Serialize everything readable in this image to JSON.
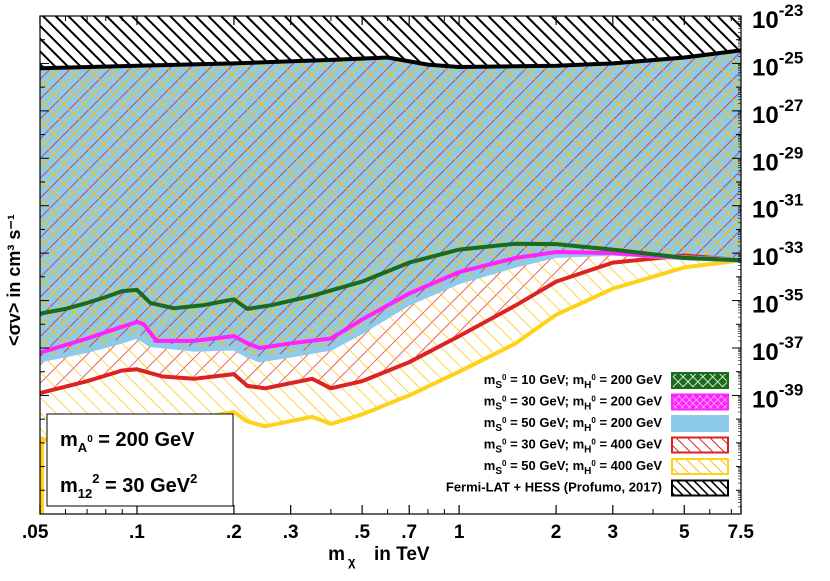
{
  "colors": {
    "green": "#1a6b1a",
    "magenta": "#ff22ff",
    "lightblue": "#8ecbea",
    "red": "#dd2222",
    "yellow": "#ffd21a",
    "black": "#000000"
  },
  "chart_data": {
    "type": "area",
    "xlabel_main": "m",
    "xlabel_sub": "χ",
    "xlabel_suffix": "in TeV",
    "ylabel": "<σv> in cm³ s⁻¹",
    "x_scale": "log",
    "y_scale": "log",
    "xlim": [
      0.05,
      7.5
    ],
    "ylim": [
      1e-44,
      1e-23
    ],
    "x_ticks": [
      {
        "v": 0.05,
        "label": ".05"
      },
      {
        "v": 0.1,
        "label": ".1"
      },
      {
        "v": 0.2,
        "label": ".2"
      },
      {
        "v": 0.3,
        "label": ".3"
      },
      {
        "v": 0.5,
        "label": ".5"
      },
      {
        "v": 0.7,
        "label": ".7"
      },
      {
        "v": 1,
        "label": "1"
      },
      {
        "v": 2,
        "label": "2"
      },
      {
        "v": 3,
        "label": "3"
      },
      {
        "v": 5,
        "label": "5"
      },
      {
        "v": 7.5,
        "label": "7.5"
      }
    ],
    "y_ticks": [
      {
        "v": -23,
        "base": "10",
        "exp": "-23"
      },
      {
        "v": -25,
        "base": "10",
        "exp": "-25"
      },
      {
        "v": -27,
        "base": "10",
        "exp": "-27"
      },
      {
        "v": -29,
        "base": "10",
        "exp": "-29"
      },
      {
        "v": -31,
        "base": "10",
        "exp": "-31"
      },
      {
        "v": -33,
        "base": "10",
        "exp": "-33"
      },
      {
        "v": -35,
        "base": "10",
        "exp": "-35"
      },
      {
        "v": -37,
        "base": "10",
        "exp": "-37"
      },
      {
        "v": -39,
        "base": "10",
        "exp": "-39"
      }
    ],
    "annotation": {
      "line1": {
        "main": "m",
        "sub": "A",
        "sup": "0",
        "rest": " = 200 GeV"
      },
      "line2": {
        "main": "m",
        "sub": "12",
        "sup": "2",
        "rest": " = 30 GeV",
        "sup2": "2"
      }
    },
    "legend_position": "bottom-right",
    "series": [
      {
        "name": "m_S⁰ = 10 GeV; m_H⁰ = 200 GeV",
        "legend": {
          "a": "m",
          "s1": "S",
          "s1sup": "0",
          "b": " = 10 GeV; m",
          "s2": "H",
          "s2sup": "0",
          "c": " = 200 GeV"
        },
        "color": "#1a6b1a",
        "fill": "crosshatch",
        "points": [
          [
            0.05,
            -35.55
          ],
          [
            0.06,
            -35.35
          ],
          [
            0.07,
            -35.1
          ],
          [
            0.08,
            -34.85
          ],
          [
            0.09,
            -34.6
          ],
          [
            0.1,
            -34.55
          ],
          [
            0.11,
            -35.1
          ],
          [
            0.13,
            -35.32
          ],
          [
            0.16,
            -35.2
          ],
          [
            0.19,
            -35.0
          ],
          [
            0.2,
            -34.95
          ],
          [
            0.22,
            -35.35
          ],
          [
            0.26,
            -35.2
          ],
          [
            0.35,
            -34.8
          ],
          [
            0.5,
            -34.2
          ],
          [
            0.7,
            -33.4
          ],
          [
            1.0,
            -32.85
          ],
          [
            1.5,
            -32.6
          ],
          [
            2.0,
            -32.62
          ],
          [
            3.0,
            -32.85
          ],
          [
            5.0,
            -33.2
          ],
          [
            7.5,
            -33.3
          ]
        ]
      },
      {
        "name": "m_S⁰ = 30 GeV; m_H⁰ = 200 GeV",
        "legend": {
          "a": "m",
          "s1": "S",
          "s1sup": "0",
          "b": " = 30 GeV; m",
          "s2": "H",
          "s2sup": "0",
          "c": " = 200 GeV"
        },
        "color": "#ff22ff",
        "fill": "crosshatch-fine",
        "points": [
          [
            0.05,
            -37.2
          ],
          [
            0.07,
            -36.6
          ],
          [
            0.09,
            -36.1
          ],
          [
            0.1,
            -35.9
          ],
          [
            0.105,
            -36.0
          ],
          [
            0.115,
            -36.7
          ],
          [
            0.15,
            -36.7
          ],
          [
            0.2,
            -36.5
          ],
          [
            0.22,
            -36.8
          ],
          [
            0.24,
            -37.0
          ],
          [
            0.3,
            -36.8
          ],
          [
            0.4,
            -36.6
          ],
          [
            0.5,
            -35.8
          ],
          [
            0.7,
            -34.7
          ],
          [
            1.0,
            -33.8
          ],
          [
            1.5,
            -33.2
          ],
          [
            2.0,
            -32.95
          ],
          [
            3.0,
            -33.0
          ],
          [
            5.0,
            -33.2
          ],
          [
            7.5,
            -33.3
          ]
        ]
      },
      {
        "name": "m_S⁰ = 50 GeV; m_H⁰ = 200 GeV",
        "legend": {
          "a": "m",
          "s1": "S",
          "s1sup": "0",
          "b": " = 50 GeV; m",
          "s2": "H",
          "s2sup": "0",
          "c": " = 200 GeV"
        },
        "color": "#8ecbea",
        "fill": "solid",
        "points": [
          [
            0.05,
            -37.5
          ],
          [
            0.07,
            -37.1
          ],
          [
            0.09,
            -36.7
          ],
          [
            0.1,
            -36.5
          ],
          [
            0.11,
            -36.85
          ],
          [
            0.15,
            -37.05
          ],
          [
            0.2,
            -37.0
          ],
          [
            0.22,
            -37.3
          ],
          [
            0.24,
            -37.5
          ],
          [
            0.3,
            -37.3
          ],
          [
            0.4,
            -37.0
          ],
          [
            0.5,
            -36.3
          ],
          [
            0.7,
            -35.1
          ],
          [
            1.0,
            -34.2
          ],
          [
            1.5,
            -33.5
          ],
          [
            2.0,
            -33.1
          ],
          [
            3.0,
            -33.0
          ],
          [
            5.0,
            -33.2
          ],
          [
            7.5,
            -33.3
          ]
        ]
      },
      {
        "name": "m_S⁰ = 30 GeV; m_H⁰ = 400 GeV",
        "legend": {
          "a": "m",
          "s1": "S",
          "s1sup": "0",
          "b": " = 30 GeV; m",
          "s2": "H",
          "s2sup": "0",
          "c": " = 400 GeV"
        },
        "color": "#dd2222",
        "fill": "hatch-red",
        "points": [
          [
            0.05,
            -38.9
          ],
          [
            0.07,
            -38.4
          ],
          [
            0.09,
            -37.95
          ],
          [
            0.1,
            -37.9
          ],
          [
            0.12,
            -38.2
          ],
          [
            0.15,
            -38.3
          ],
          [
            0.2,
            -38.1
          ],
          [
            0.22,
            -38.6
          ],
          [
            0.25,
            -38.7
          ],
          [
            0.35,
            -38.3
          ],
          [
            0.4,
            -38.7
          ],
          [
            0.5,
            -38.4
          ],
          [
            0.7,
            -37.6
          ],
          [
            1.0,
            -36.5
          ],
          [
            1.5,
            -35.2
          ],
          [
            2.0,
            -34.2
          ],
          [
            3.0,
            -33.4
          ],
          [
            5.0,
            -33.1
          ],
          [
            7.5,
            -33.3
          ]
        ]
      },
      {
        "name": "m_S⁰ = 50 GeV; m_H⁰ = 400 GeV",
        "legend": {
          "a": "m",
          "s1": "S",
          "s1sup": "0",
          "b": " = 50 GeV; m",
          "s2": "H",
          "s2sup": "0",
          "c": " = 400 GeV"
        },
        "color": "#ffd21a",
        "fill": "hatch-yellow",
        "points": [
          [
            0.05,
            -40.8
          ],
          [
            0.06,
            -41.1
          ],
          [
            0.07,
            -41.0
          ],
          [
            0.09,
            -40.6
          ],
          [
            0.1,
            -40.4
          ],
          [
            0.12,
            -40.3
          ],
          [
            0.15,
            -40.0
          ],
          [
            0.2,
            -39.7
          ],
          [
            0.22,
            -40.1
          ],
          [
            0.25,
            -40.3
          ],
          [
            0.35,
            -39.9
          ],
          [
            0.4,
            -40.2
          ],
          [
            0.5,
            -39.8
          ],
          [
            0.7,
            -39.0
          ],
          [
            1.0,
            -38.0
          ],
          [
            1.5,
            -36.8
          ],
          [
            2.0,
            -35.6
          ],
          [
            3.0,
            -34.5
          ],
          [
            5.0,
            -33.6
          ],
          [
            7.5,
            -33.3
          ]
        ]
      },
      {
        "name": "Fermi-LAT + HESS (Profumo, 2017)",
        "legend": {
          "plain": "Fermi-LAT + HESS (Profumo, 2017)"
        },
        "color": "#000000",
        "fill": "hatch-black",
        "points": [
          [
            0.05,
            -25.2
          ],
          [
            0.1,
            -25.1
          ],
          [
            0.2,
            -25.0
          ],
          [
            0.4,
            -24.85
          ],
          [
            0.6,
            -24.75
          ],
          [
            0.8,
            -25.05
          ],
          [
            1.0,
            -25.15
          ],
          [
            2.0,
            -25.1
          ],
          [
            3.0,
            -25.0
          ],
          [
            5.0,
            -24.75
          ],
          [
            7.5,
            -24.45
          ]
        ]
      }
    ]
  }
}
